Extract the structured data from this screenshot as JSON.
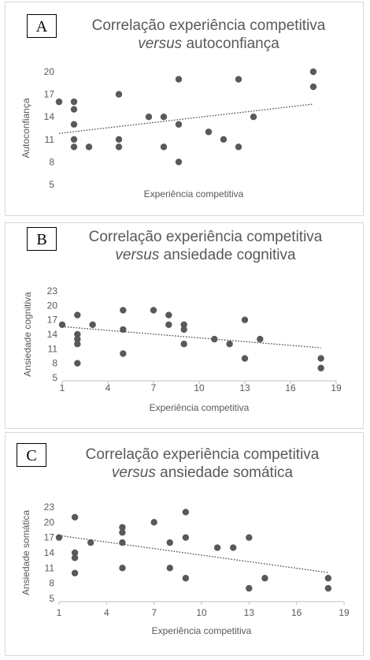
{
  "chart_data": [
    {
      "type": "scatter",
      "panel_letter": "A",
      "title_line1": "Correlação experiência competitiva",
      "title_italic": "versus",
      "title_rest": " autoconfiança",
      "xlabel": "Experiência competitiva",
      "ylabel": "Autoconfiança",
      "xlim": [
        0,
        18
      ],
      "ylim": [
        5,
        20
      ],
      "yticks": [
        5,
        8,
        11,
        14,
        17,
        20
      ],
      "xticks": [],
      "trendline": "linear-dotted",
      "color": "#595959",
      "points": [
        {
          "x": 0,
          "y": 16
        },
        {
          "x": 1,
          "y": 16
        },
        {
          "x": 1,
          "y": 15
        },
        {
          "x": 1,
          "y": 13
        },
        {
          "x": 1,
          "y": 11
        },
        {
          "x": 1,
          "y": 10
        },
        {
          "x": 2,
          "y": 10
        },
        {
          "x": 4,
          "y": 17
        },
        {
          "x": 4,
          "y": 11
        },
        {
          "x": 4,
          "y": 10
        },
        {
          "x": 6,
          "y": 14
        },
        {
          "x": 7,
          "y": 14
        },
        {
          "x": 7,
          "y": 10
        },
        {
          "x": 8,
          "y": 19
        },
        {
          "x": 8,
          "y": 13
        },
        {
          "x": 8,
          "y": 8
        },
        {
          "x": 10,
          "y": 12
        },
        {
          "x": 11,
          "y": 11
        },
        {
          "x": 12,
          "y": 19
        },
        {
          "x": 12,
          "y": 10
        },
        {
          "x": 13,
          "y": 14
        },
        {
          "x": 17,
          "y": 20
        },
        {
          "x": 17,
          "y": 18
        }
      ],
      "trend": [
        {
          "x": 0,
          "y": 11.8
        },
        {
          "x": 17,
          "y": 15.7
        }
      ]
    },
    {
      "type": "scatter",
      "panel_letter": "B",
      "title_line1": "Correlação experiência competitiva",
      "title_italic": "versus",
      "title_rest": " ansiedade cognitiva",
      "xlabel": "Experiência competitiva",
      "ylabel": "Ansiedade cognitiva",
      "xlim": [
        1,
        19
      ],
      "ylim": [
        5,
        23
      ],
      "yticks": [
        5,
        8,
        11,
        14,
        17,
        20,
        23
      ],
      "xticks": [
        1,
        4,
        7,
        10,
        13,
        16,
        19
      ],
      "trendline": "linear-dotted",
      "color": "#595959",
      "points": [
        {
          "x": 1,
          "y": 16
        },
        {
          "x": 2,
          "y": 18
        },
        {
          "x": 2,
          "y": 14
        },
        {
          "x": 2,
          "y": 13
        },
        {
          "x": 2,
          "y": 12
        },
        {
          "x": 2,
          "y": 8
        },
        {
          "x": 3,
          "y": 16
        },
        {
          "x": 5,
          "y": 19
        },
        {
          "x": 5,
          "y": 15
        },
        {
          "x": 5,
          "y": 10
        },
        {
          "x": 7,
          "y": 19
        },
        {
          "x": 8,
          "y": 18
        },
        {
          "x": 8,
          "y": 16
        },
        {
          "x": 9,
          "y": 16
        },
        {
          "x": 9,
          "y": 15
        },
        {
          "x": 9,
          "y": 12
        },
        {
          "x": 11,
          "y": 13
        },
        {
          "x": 12,
          "y": 12
        },
        {
          "x": 13,
          "y": 17
        },
        {
          "x": 13,
          "y": 9
        },
        {
          "x": 14,
          "y": 13
        },
        {
          "x": 18,
          "y": 9
        },
        {
          "x": 18,
          "y": 7
        }
      ],
      "trend": [
        {
          "x": 1,
          "y": 15.6
        },
        {
          "x": 18,
          "y": 11.2
        }
      ]
    },
    {
      "type": "scatter",
      "panel_letter": "C",
      "title_line1": "Correlação experiência competitiva",
      "title_italic": "versus",
      "title_rest": " ansiedade somática",
      "xlabel": "Experiência competitiva",
      "ylabel": "Ansiedade somática",
      "xlim": [
        1,
        19
      ],
      "ylim": [
        5,
        23
      ],
      "yticks": [
        5,
        8,
        11,
        14,
        17,
        20,
        23
      ],
      "xticks": [
        1,
        4,
        7,
        10,
        13,
        16,
        19
      ],
      "trendline": "linear-dotted",
      "color": "#595959",
      "points": [
        {
          "x": 1,
          "y": 17
        },
        {
          "x": 2,
          "y": 21
        },
        {
          "x": 2,
          "y": 14
        },
        {
          "x": 2,
          "y": 13
        },
        {
          "x": 2,
          "y": 10
        },
        {
          "x": 3,
          "y": 16
        },
        {
          "x": 5,
          "y": 19
        },
        {
          "x": 5,
          "y": 18
        },
        {
          "x": 5,
          "y": 16
        },
        {
          "x": 5,
          "y": 11
        },
        {
          "x": 7,
          "y": 20
        },
        {
          "x": 8,
          "y": 16
        },
        {
          "x": 8,
          "y": 11
        },
        {
          "x": 9,
          "y": 22
        },
        {
          "x": 9,
          "y": 17
        },
        {
          "x": 9,
          "y": 9
        },
        {
          "x": 11,
          "y": 15
        },
        {
          "x": 12,
          "y": 15
        },
        {
          "x": 13,
          "y": 17
        },
        {
          "x": 13,
          "y": 7
        },
        {
          "x": 14,
          "y": 9
        },
        {
          "x": 18,
          "y": 9
        },
        {
          "x": 18,
          "y": 7
        }
      ],
      "trend": [
        {
          "x": 1,
          "y": 17.4
        },
        {
          "x": 18,
          "y": 10.1
        }
      ]
    }
  ]
}
